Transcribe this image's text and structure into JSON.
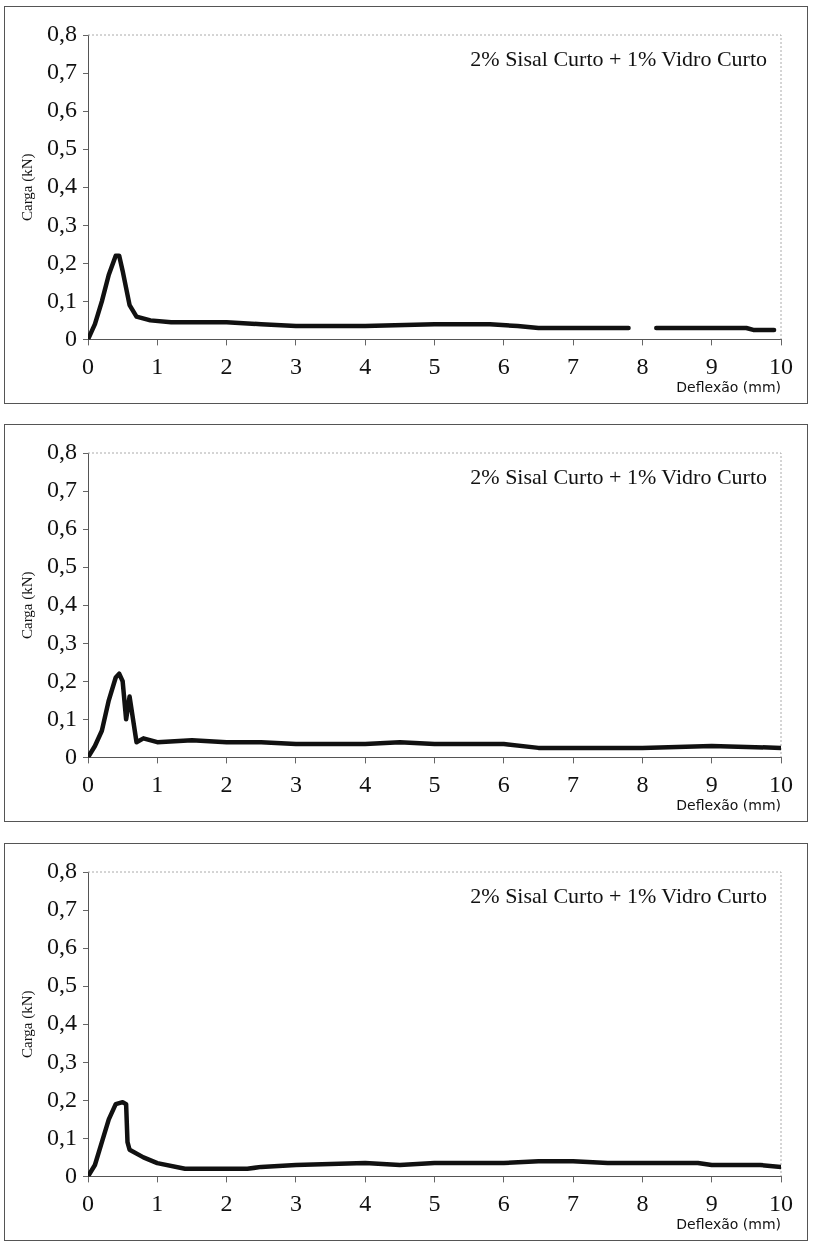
{
  "chart_data": [
    {
      "type": "line",
      "xlabel": "Deflexão (mm)",
      "ylabel": "Carga (kN)",
      "annotations": [
        "2% Sisal Curto + 1% Vidro Curto"
      ],
      "xlim": [
        0,
        10
      ],
      "ylim": [
        0,
        0.8
      ],
      "xticks": [
        0,
        1,
        2,
        3,
        4,
        5,
        6,
        7,
        8,
        9,
        10
      ],
      "yticks": [
        {
          "value": 0,
          "label": "0"
        },
        {
          "value": 0.1,
          "label": "0,1"
        },
        {
          "value": 0.2,
          "label": "0,2"
        },
        {
          "value": 0.3,
          "label": "0,3"
        },
        {
          "value": 0.4,
          "label": "0,4"
        },
        {
          "value": 0.5,
          "label": "0,5"
        },
        {
          "value": 0.6,
          "label": "0,6"
        },
        {
          "value": 0.7,
          "label": "0,7"
        },
        {
          "value": 0.8,
          "label": "0,8"
        }
      ],
      "grid": false,
      "legend": false,
      "marker": "none",
      "line_style": "solid",
      "series": [
        {
          "color": "#111111",
          "x": [
            0,
            0.1,
            0.2,
            0.3,
            0.4,
            0.45,
            0.5,
            0.6,
            0.7,
            0.9,
            1.2,
            1.6,
            2,
            2.5,
            3,
            3.5,
            4,
            5,
            5.8,
            6.2,
            6.5,
            7,
            7.8,
            8,
            8.2,
            9,
            9.5,
            9.6,
            9.9
          ],
          "values": [
            0,
            0.04,
            0.1,
            0.17,
            0.22,
            0.22,
            0.18,
            0.09,
            0.06,
            0.05,
            0.045,
            0.045,
            0.045,
            0.04,
            0.035,
            0.035,
            0.035,
            0.04,
            0.04,
            0.035,
            0.03,
            0.03,
            0.03,
            null,
            0.03,
            0.03,
            0.03,
            0.025,
            0.025
          ]
        }
      ]
    },
    {
      "type": "line",
      "xlabel": "Deflexão (mm)",
      "ylabel": "Carga (kN)",
      "annotations": [
        "2% Sisal Curto + 1% Vidro Curto"
      ],
      "xlim": [
        0,
        10
      ],
      "ylim": [
        0,
        0.8
      ],
      "xticks": [
        0,
        1,
        2,
        3,
        4,
        5,
        6,
        7,
        8,
        9,
        10
      ],
      "yticks": [
        {
          "value": 0,
          "label": "0"
        },
        {
          "value": 0.1,
          "label": "0,1"
        },
        {
          "value": 0.2,
          "label": "0,2"
        },
        {
          "value": 0.3,
          "label": "0,3"
        },
        {
          "value": 0.4,
          "label": "0,4"
        },
        {
          "value": 0.5,
          "label": "0,5"
        },
        {
          "value": 0.6,
          "label": "0,6"
        },
        {
          "value": 0.7,
          "label": "0,7"
        },
        {
          "value": 0.8,
          "label": "0,8"
        }
      ],
      "grid": false,
      "legend": false,
      "marker": "none",
      "line_style": "solid",
      "series": [
        {
          "color": "#111111",
          "x": [
            0,
            0.1,
            0.2,
            0.3,
            0.4,
            0.45,
            0.5,
            0.55,
            0.6,
            0.65,
            0.7,
            0.8,
            1,
            1.5,
            2,
            2.5,
            3,
            4,
            4.5,
            5,
            6,
            6.5,
            7,
            8,
            9,
            10
          ],
          "values": [
            0,
            0.03,
            0.07,
            0.15,
            0.21,
            0.22,
            0.2,
            0.1,
            0.16,
            0.1,
            0.04,
            0.05,
            0.04,
            0.045,
            0.04,
            0.04,
            0.035,
            0.035,
            0.04,
            0.035,
            0.035,
            0.025,
            0.025,
            0.025,
            0.03,
            0.025
          ]
        }
      ]
    },
    {
      "type": "line",
      "xlabel": "Deflexão (mm)",
      "ylabel": "Carga (kN)",
      "annotations": [
        "2% Sisal Curto + 1% Vidro Curto"
      ],
      "xlim": [
        0,
        10
      ],
      "ylim": [
        0,
        0.8
      ],
      "xticks": [
        0,
        1,
        2,
        3,
        4,
        5,
        6,
        7,
        8,
        9,
        10
      ],
      "yticks": [
        {
          "value": 0,
          "label": "0"
        },
        {
          "value": 0.1,
          "label": "0,1"
        },
        {
          "value": 0.2,
          "label": "0,2"
        },
        {
          "value": 0.3,
          "label": "0,3"
        },
        {
          "value": 0.4,
          "label": "0,4"
        },
        {
          "value": 0.5,
          "label": "0,5"
        },
        {
          "value": 0.6,
          "label": "0,6"
        },
        {
          "value": 0.7,
          "label": "0,7"
        },
        {
          "value": 0.8,
          "label": "0,8"
        }
      ],
      "grid": false,
      "legend": false,
      "marker": "none",
      "line_style": "solid",
      "series": [
        {
          "color": "#111111",
          "x": [
            0,
            0.1,
            0.2,
            0.3,
            0.4,
            0.5,
            0.55,
            0.57,
            0.6,
            0.8,
            1,
            1.4,
            2,
            2.3,
            2.5,
            3,
            4,
            4.5,
            5,
            6,
            6.5,
            7,
            7.5,
            8.8,
            9,
            9.7,
            10
          ],
          "values": [
            0,
            0.03,
            0.09,
            0.15,
            0.19,
            0.195,
            0.19,
            0.09,
            0.07,
            0.05,
            0.035,
            0.02,
            0.02,
            0.02,
            0.025,
            0.03,
            0.035,
            0.03,
            0.035,
            0.035,
            0.04,
            0.04,
            0.035,
            0.035,
            0.03,
            0.03,
            0.025
          ]
        }
      ]
    }
  ]
}
